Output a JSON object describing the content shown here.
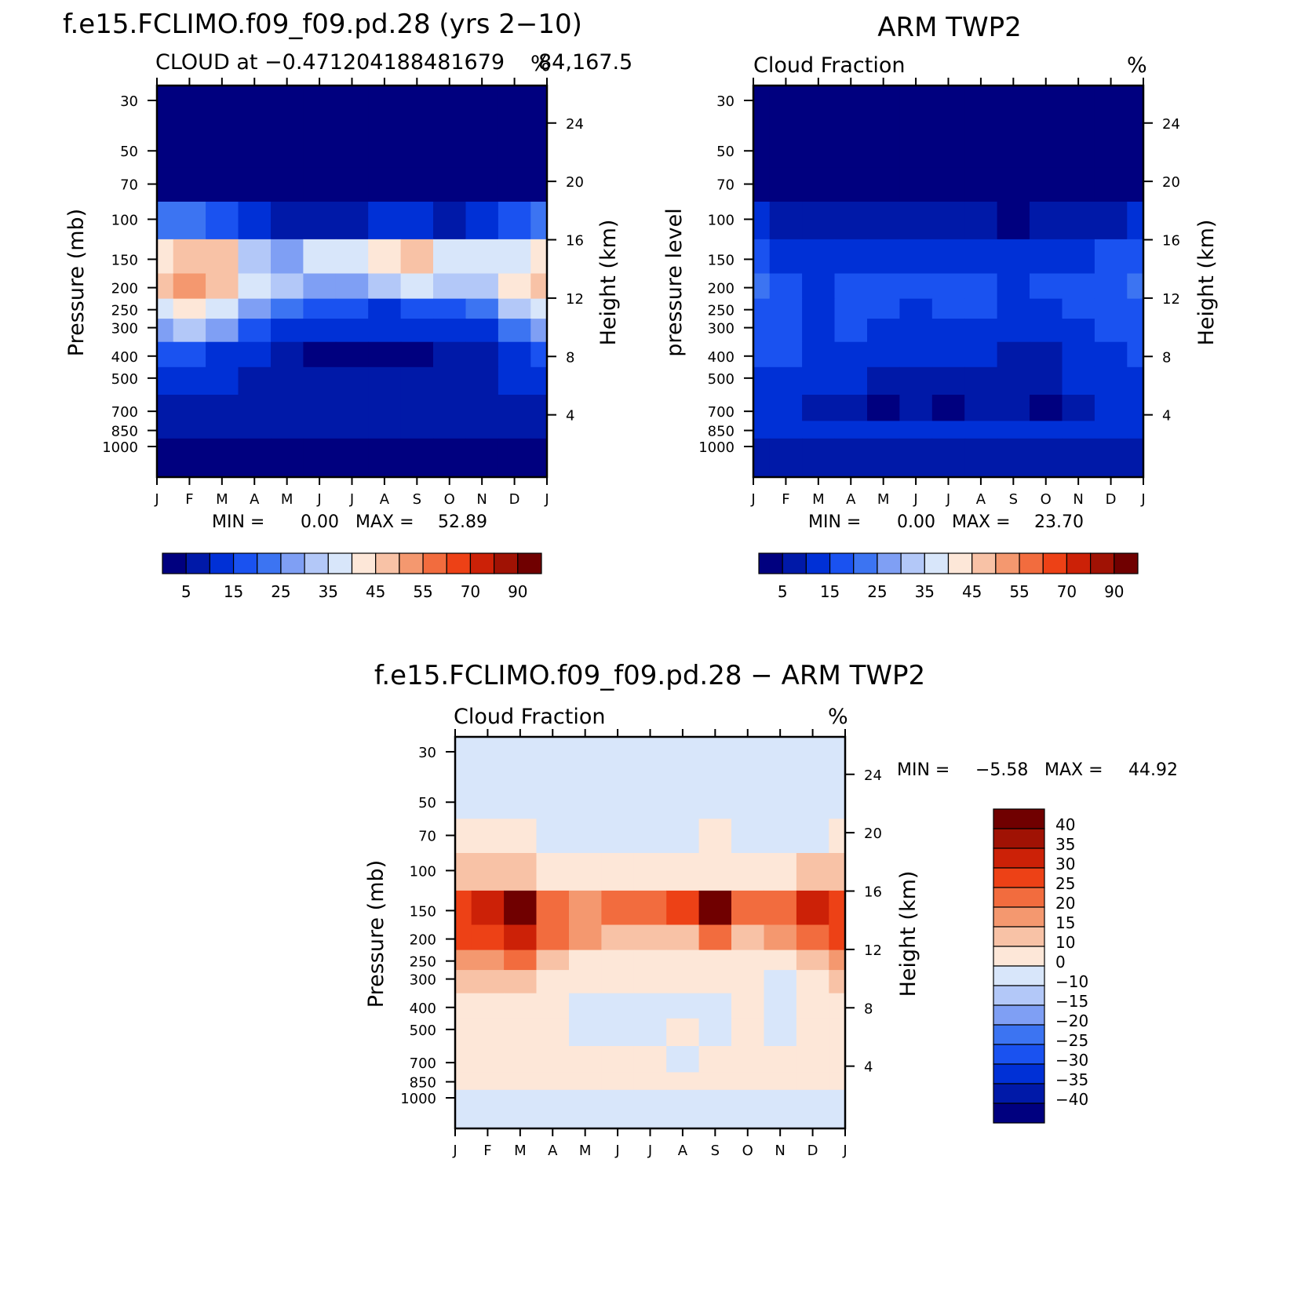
{
  "panels": [
    {
      "id": "model",
      "title": "f.e15.FCLIMO.f09_f09.pd.28 (yrs 2−10)",
      "subtitle_left": "CLOUD at −0.471204188481679",
      "subtitle_right": "%",
      "subtitle_extra": "84,167.5",
      "ylabel": "Pressure (mb)",
      "ylabel_right": "Height (km)",
      "stats": {
        "min_label": "MIN =",
        "min": "0.00",
        "max_label": "MAX =",
        "max": "52.89"
      }
    },
    {
      "id": "obs",
      "title": "ARM TWP2",
      "subtitle_left": "Cloud Fraction",
      "subtitle_right": "%",
      "ylabel": "pressure level",
      "ylabel_right": "Height (km)",
      "stats": {
        "min_label": "MIN =",
        "min": "0.00",
        "max_label": "MAX =",
        "max": "23.70"
      }
    },
    {
      "id": "diff",
      "title": "f.e15.FCLIMO.f09_f09.pd.28 − ARM TWP2",
      "subtitle_left": "Cloud Fraction",
      "subtitle_right": "%",
      "ylabel": "Pressure (mb)",
      "ylabel_right": "Height (km)",
      "stats": {
        "min_label": "MIN =",
        "min": "−5.58",
        "max_label": "MAX =",
        "max": "44.92"
      }
    }
  ],
  "chart_data": [
    {
      "type": "heatmap",
      "title": "f.e15.FCLIMO.f09_f09.pd.28 (yrs 2−10)",
      "subtitle": "CLOUD at −0.4712041884816784,167.5",
      "units": "%",
      "x": [
        "J",
        "F",
        "M",
        "A",
        "M",
        "J",
        "J",
        "A",
        "S",
        "O",
        "N",
        "D",
        "J"
      ],
      "y_pressure_ticks": [
        30,
        50,
        70,
        100,
        150,
        200,
        250,
        300,
        400,
        500,
        700,
        850,
        1000
      ],
      "y_height_ticks": [
        24,
        20,
        16,
        12,
        8,
        4
      ],
      "ylabel": "Pressure (mb)",
      "ylabel_right": "Height (km)",
      "stats": {
        "min": 0.0,
        "max": 52.89
      },
      "colorbar": {
        "levels": [
          5,
          10,
          15,
          20,
          25,
          30,
          35,
          40,
          45,
          50,
          55,
          60,
          70,
          80,
          90
        ],
        "labels": [
          "5",
          "15",
          "25",
          "35",
          "45",
          "55",
          "70",
          "90"
        ],
        "colors": [
          "#00007f",
          "#0019a8",
          "#0030d6",
          "#1a52f0",
          "#3c74f2",
          "#7f9ff4",
          "#b3c8f8",
          "#d8e6fa",
          "#fde7d8",
          "#f8c2a6",
          "#f4986f",
          "#f26c3e",
          "#ed4116",
          "#cc2107",
          "#a01204",
          "#700000"
        ]
      },
      "grid_months": [
        "J",
        "F",
        "M",
        "A",
        "M",
        "J",
        "J",
        "A",
        "S",
        "O",
        "N",
        "D",
        "J"
      ],
      "grid_levels": [
        30,
        50,
        70,
        100,
        150,
        200,
        250,
        300,
        400,
        500,
        700,
        850,
        1000
      ],
      "values": [
        [
          0,
          0,
          0,
          0,
          0,
          0,
          0,
          0,
          0,
          0,
          0,
          0,
          0
        ],
        [
          0,
          0,
          0,
          0,
          0,
          0,
          0,
          0,
          0,
          0,
          0,
          0,
          0
        ],
        [
          1,
          1,
          1,
          0,
          0,
          0,
          0,
          0,
          0,
          0,
          0,
          1,
          1
        ],
        [
          22,
          20,
          16,
          10,
          8,
          7,
          8,
          10,
          12,
          9,
          12,
          18,
          22
        ],
        [
          44,
          48,
          45,
          32,
          28,
          35,
          38,
          40,
          48,
          38,
          35,
          38,
          44
        ],
        [
          47,
          50,
          47,
          38,
          30,
          27,
          28,
          30,
          35,
          30,
          32,
          40,
          47
        ],
        [
          38,
          40,
          35,
          28,
          22,
          18,
          16,
          14,
          15,
          16,
          20,
          30,
          38
        ],
        [
          28,
          30,
          26,
          18,
          12,
          10,
          10,
          12,
          12,
          12,
          14,
          22,
          28
        ],
        [
          15,
          16,
          14,
          10,
          6,
          3,
          3,
          3,
          4,
          5,
          8,
          14,
          15
        ],
        [
          10,
          12,
          10,
          8,
          7,
          5,
          5,
          6,
          6,
          7,
          8,
          12,
          10
        ],
        [
          8,
          9,
          8,
          8,
          8,
          7,
          7,
          7,
          7,
          7,
          7,
          8,
          8
        ],
        [
          6,
          7,
          7,
          6,
          5,
          5,
          5,
          5,
          5,
          5,
          5,
          6,
          6
        ],
        [
          3,
          3,
          3,
          3,
          3,
          3,
          3,
          3,
          3,
          3,
          3,
          3,
          3
        ]
      ]
    },
    {
      "type": "heatmap",
      "title": "ARM TWP2",
      "subtitle": "Cloud Fraction",
      "units": "%",
      "x": [
        "J",
        "F",
        "M",
        "A",
        "M",
        "J",
        "J",
        "A",
        "S",
        "O",
        "N",
        "D",
        "J"
      ],
      "y_pressure_ticks": [
        30,
        50,
        70,
        100,
        150,
        200,
        250,
        300,
        400,
        500,
        700,
        850,
        1000
      ],
      "y_height_ticks": [
        24,
        20,
        16,
        12,
        8,
        4
      ],
      "ylabel": "pressure level",
      "ylabel_right": "Height (km)",
      "stats": {
        "min": 0.0,
        "max": 23.7
      },
      "colorbar": {
        "levels": [
          5,
          10,
          15,
          20,
          25,
          30,
          35,
          40,
          45,
          50,
          55,
          60,
          70,
          80,
          90
        ],
        "labels": [
          "5",
          "15",
          "25",
          "35",
          "45",
          "55",
          "70",
          "90"
        ],
        "colors": [
          "#00007f",
          "#0019a8",
          "#0030d6",
          "#1a52f0",
          "#3c74f2",
          "#7f9ff4",
          "#b3c8f8",
          "#d8e6fa",
          "#fde7d8",
          "#f8c2a6",
          "#f4986f",
          "#f26c3e",
          "#ed4116",
          "#cc2107",
          "#a01204",
          "#700000"
        ]
      },
      "grid_months": [
        "J",
        "F",
        "M",
        "A",
        "M",
        "J",
        "J",
        "A",
        "S",
        "O",
        "N",
        "D",
        "J"
      ],
      "grid_levels": [
        30,
        50,
        70,
        100,
        150,
        200,
        250,
        300,
        400,
        500,
        700,
        850,
        1000
      ],
      "values": [
        [
          0,
          0,
          0,
          0,
          0,
          0,
          0,
          0,
          0,
          0,
          0,
          0,
          0
        ],
        [
          0,
          0,
          0,
          0,
          0,
          0,
          0,
          0,
          0,
          0,
          0,
          0,
          0
        ],
        [
          1,
          1,
          0,
          0,
          0,
          0,
          0,
          0,
          0,
          0,
          0,
          0,
          1
        ],
        [
          12,
          8,
          6,
          5,
          6,
          6,
          6,
          6,
          4,
          5,
          6,
          8,
          12
        ],
        [
          16,
          14,
          12,
          14,
          12,
          12,
          13,
          14,
          12,
          13,
          14,
          16,
          16
        ],
        [
          20,
          18,
          14,
          16,
          15,
          17,
          19,
          17,
          14,
          15,
          17,
          19,
          20
        ],
        [
          19,
          17,
          14,
          16,
          15,
          14,
          16,
          15,
          13,
          14,
          16,
          18,
          19
        ],
        [
          18,
          16,
          14,
          15,
          13,
          12,
          13,
          13,
          11,
          12,
          14,
          17,
          18
        ],
        [
          15,
          15,
          13,
          10,
          10,
          10,
          10,
          10,
          8,
          7,
          10,
          14,
          15
        ],
        [
          14,
          14,
          12,
          10,
          9,
          8,
          8,
          9,
          6,
          6,
          10,
          12,
          14
        ],
        [
          12,
          11,
          9,
          7,
          4,
          8,
          4,
          7,
          5,
          4,
          8,
          10,
          12
        ],
        [
          13,
          13,
          12,
          11,
          11,
          11,
          11,
          11,
          11,
          11,
          11,
          12,
          13
        ],
        [
          7,
          7,
          7,
          7,
          7,
          7,
          7,
          7,
          7,
          7,
          7,
          7,
          7
        ]
      ]
    },
    {
      "type": "heatmap",
      "title": "f.e15.FCLIMO.f09_f09.pd.28 − ARM TWP2",
      "subtitle": "Cloud Fraction",
      "units": "%",
      "x": [
        "J",
        "F",
        "M",
        "A",
        "M",
        "J",
        "J",
        "A",
        "S",
        "O",
        "N",
        "D",
        "J"
      ],
      "y_pressure_ticks": [
        30,
        50,
        70,
        100,
        150,
        200,
        250,
        300,
        400,
        500,
        700,
        850,
        1000
      ],
      "y_height_ticks": [
        24,
        20,
        16,
        12,
        8,
        4
      ],
      "ylabel": "Pressure (mb)",
      "ylabel_right": "Height (km)",
      "stats": {
        "min": -5.58,
        "max": 44.92
      },
      "colorbar": {
        "levels": [
          -40,
          -35,
          -30,
          -25,
          -20,
          -15,
          -10,
          0,
          10,
          15,
          20,
          25,
          30,
          35,
          40
        ],
        "labels": [
          "40",
          "35",
          "30",
          "25",
          "20",
          "15",
          "10",
          "0",
          "−10",
          "−15",
          "−20",
          "−25",
          "−30",
          "−35",
          "−40"
        ],
        "colors": [
          "#00007f",
          "#0019a8",
          "#0030d6",
          "#1a52f0",
          "#3c74f2",
          "#7f9ff4",
          "#b3c8f8",
          "#d8e6fa",
          "#fde7d8",
          "#f8c2a6",
          "#f4986f",
          "#f26c3e",
          "#ed4116",
          "#cc2107",
          "#a01204",
          "#700000"
        ]
      },
      "grid_months": [
        "J",
        "F",
        "M",
        "A",
        "M",
        "J",
        "J",
        "A",
        "S",
        "O",
        "N",
        "D",
        "J"
      ],
      "grid_levels": [
        30,
        50,
        70,
        100,
        150,
        200,
        250,
        300,
        400,
        500,
        700,
        850,
        1000
      ],
      "values": [
        [
          -2,
          -2,
          -2,
          -2,
          -2,
          -2,
          -2,
          -2,
          -2,
          -2,
          -2,
          -2,
          -2
        ],
        [
          -1,
          -1,
          -1,
          -1,
          -1,
          -1,
          -1,
          -1,
          -1,
          -1,
          -1,
          -1,
          -1
        ],
        [
          2,
          2,
          2,
          -1,
          -1,
          -1,
          -1,
          -1,
          1,
          -1,
          -1,
          -1,
          2
        ],
        [
          12,
          14,
          12,
          6,
          4,
          3,
          3,
          5,
          9,
          5,
          8,
          12,
          12
        ],
        [
          28,
          34,
          40,
          22,
          16,
          20,
          20,
          26,
          42,
          22,
          20,
          30,
          28
        ],
        [
          25,
          28,
          32,
          22,
          16,
          12,
          10,
          12,
          22,
          14,
          16,
          22,
          25
        ],
        [
          16,
          18,
          20,
          12,
          8,
          6,
          4,
          4,
          6,
          4,
          6,
          14,
          16
        ],
        [
          10,
          12,
          14,
          6,
          4,
          2,
          2,
          2,
          3,
          2,
          -1,
          8,
          10
        ],
        [
          3,
          4,
          4,
          1,
          -2,
          -2,
          -2,
          -2,
          -3,
          1,
          -2,
          2,
          3
        ],
        [
          3,
          3,
          3,
          2,
          -1,
          -2,
          -2,
          1,
          -1,
          3,
          -1,
          2,
          3
        ],
        [
          2,
          2,
          2,
          2,
          2,
          2,
          2,
          -1,
          2,
          2,
          2,
          2,
          2
        ],
        [
          1,
          1,
          1,
          1,
          1,
          1,
          1,
          1,
          1,
          1,
          1,
          1,
          1
        ],
        [
          -1,
          -1,
          -1,
          -1,
          -1,
          -1,
          -1,
          -1,
          -1,
          -1,
          -1,
          -1,
          -1
        ]
      ]
    }
  ]
}
